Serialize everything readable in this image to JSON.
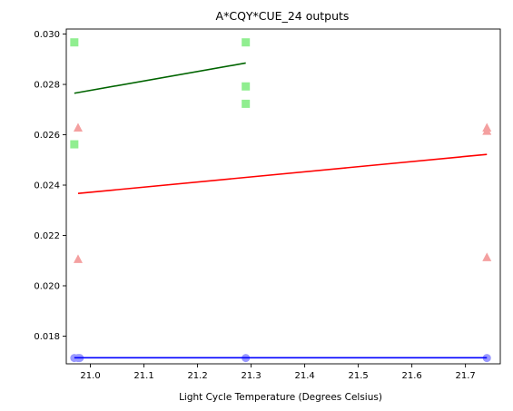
{
  "chart_data": {
    "type": "scatter",
    "title": "A*CQY*CUE_24 outputs",
    "xlabel": "Light Cycle Temperature (Degrees Celsius)",
    "ylabel": "",
    "xlim": [
      20.955,
      21.765
    ],
    "ylim": [
      0.0169,
      0.0302
    ],
    "x_ticks": [
      "21.0",
      "21.1",
      "21.2",
      "21.3",
      "21.4",
      "21.5",
      "21.6",
      "21.7"
    ],
    "y_ticks": [
      "0.018",
      "0.020",
      "0.022",
      "0.024",
      "0.026",
      "0.028",
      "0.030"
    ],
    "grid": false,
    "series": [
      {
        "marker": "square",
        "color": "#90ee90",
        "points": [
          {
            "x": 20.97,
            "y": 0.02967
          },
          {
            "x": 20.97,
            "y": 0.02562
          },
          {
            "x": 21.29,
            "y": 0.02967
          },
          {
            "x": 21.29,
            "y": 0.02792
          },
          {
            "x": 21.29,
            "y": 0.02723
          }
        ],
        "trend_color": "#006400",
        "trend": [
          {
            "x": 20.97,
            "y": 0.02765
          },
          {
            "x": 21.29,
            "y": 0.02885
          }
        ]
      },
      {
        "marker": "triangle",
        "color": "#f4a0a0",
        "points": [
          {
            "x": 20.977,
            "y": 0.02627
          },
          {
            "x": 20.977,
            "y": 0.02105
          },
          {
            "x": 21.74,
            "y": 0.02627
          },
          {
            "x": 21.74,
            "y": 0.02614
          },
          {
            "x": 21.74,
            "y": 0.02112
          }
        ],
        "trend_color": "#ff0000",
        "trend": [
          {
            "x": 20.977,
            "y": 0.02367
          },
          {
            "x": 21.74,
            "y": 0.02522
          }
        ]
      },
      {
        "marker": "circle",
        "color": "#9999ff",
        "points": [
          {
            "x": 20.97,
            "y": 0.01713
          },
          {
            "x": 20.977,
            "y": 0.01713
          },
          {
            "x": 20.98,
            "y": 0.01713
          },
          {
            "x": 21.29,
            "y": 0.01713
          },
          {
            "x": 21.74,
            "y": 0.01713
          }
        ],
        "trend_color": "#0000ff",
        "trend": [
          {
            "x": 20.97,
            "y": 0.01714
          },
          {
            "x": 21.74,
            "y": 0.01714
          }
        ]
      }
    ]
  }
}
